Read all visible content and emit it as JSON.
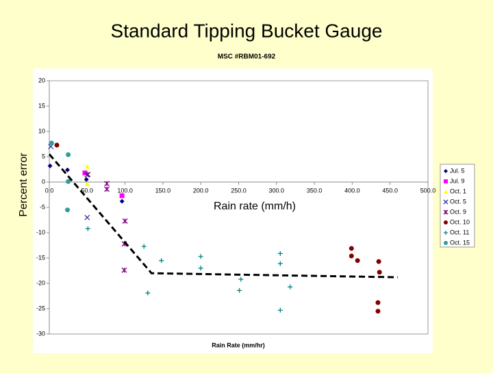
{
  "slide": {
    "title": "Standard Tipping Bucket Gauge",
    "y_label": "Percent error",
    "x_label": "Rain rate (mm/h)"
  },
  "chart_data": {
    "type": "scatter",
    "title": "MSC #RBM01-692",
    "xlabel": "Rain Rate (mm/hr)",
    "xlim": [
      0,
      500
    ],
    "ylim": [
      -30,
      20
    ],
    "xticks": [
      {
        "value": 0,
        "label": "0.0"
      },
      {
        "value": 50,
        "label": "50.0"
      },
      {
        "value": 100,
        "label": "100.0"
      },
      {
        "value": 150,
        "label": "150.0"
      },
      {
        "value": 200,
        "label": "200.0"
      },
      {
        "value": 250,
        "label": "250.0"
      },
      {
        "value": 300,
        "label": "300.0"
      },
      {
        "value": 350,
        "label": "350.0"
      },
      {
        "value": 400,
        "label": "400.0"
      },
      {
        "value": 450,
        "label": "450.0"
      },
      {
        "value": 500,
        "label": "500.0"
      }
    ],
    "yticks": [
      20,
      15,
      10,
      5,
      0,
      -5,
      -10,
      -15,
      -20,
      -25,
      -30
    ],
    "series": [
      {
        "name": "Jul. 5",
        "color": "#000080",
        "marker": "diamond",
        "x": [
          1,
          24,
          49,
          96
        ],
        "values": [
          3.2,
          2.4,
          0.5,
          -3.8
        ]
      },
      {
        "name": "Jul. 9",
        "color": "#ff00ff",
        "marker": "square",
        "x": [
          47,
          96
        ],
        "values": [
          1.8,
          -2.7
        ]
      },
      {
        "name": "Oct. 1",
        "color": "#ffff00",
        "marker": "triangle",
        "x": [
          50,
          50
        ],
        "values": [
          3.1,
          -0.3
        ]
      },
      {
        "name": "Oct. 5",
        "color": "#333399",
        "marker": "x",
        "x": [
          2,
          50,
          50
        ],
        "values": [
          7.0,
          1.4,
          -7.0
        ]
      },
      {
        "name": "Oct. 9",
        "color": "#800080",
        "marker": "star",
        "x": [
          51,
          76,
          76,
          100,
          99,
          99
        ],
        "values": [
          1.5,
          -0.3,
          -1.4,
          -7.7,
          -12.2,
          -17.4
        ]
      },
      {
        "name": "Oct. 10",
        "color": "#800000",
        "marker": "circle",
        "x": [
          10,
          399,
          399,
          407,
          435,
          436,
          434,
          434
        ],
        "values": [
          7.3,
          -13.1,
          -14.6,
          -15.5,
          -15.7,
          -17.8,
          -23.8,
          -25.5
        ]
      },
      {
        "name": "Oct. 11",
        "color": "#008080",
        "marker": "plus",
        "x": [
          51,
          125,
          148,
          130,
          200,
          200,
          253,
          251,
          305,
          305,
          318,
          305
        ],
        "values": [
          -9.2,
          -12.7,
          -15.5,
          -21.9,
          -14.7,
          -17.0,
          -19.2,
          -21.4,
          -14.1,
          -16.1,
          -20.7,
          -25.3
        ]
      },
      {
        "name": "Oct. 15",
        "color": "#339999",
        "marker": "circle",
        "x": [
          3,
          25,
          25,
          24
        ],
        "values": [
          7.7,
          5.4,
          0.1,
          -5.5
        ]
      }
    ],
    "fit_line": {
      "color": "#000000",
      "x": [
        0,
        135,
        460
      ],
      "values": [
        5.5,
        -18,
        -18.8
      ]
    }
  }
}
